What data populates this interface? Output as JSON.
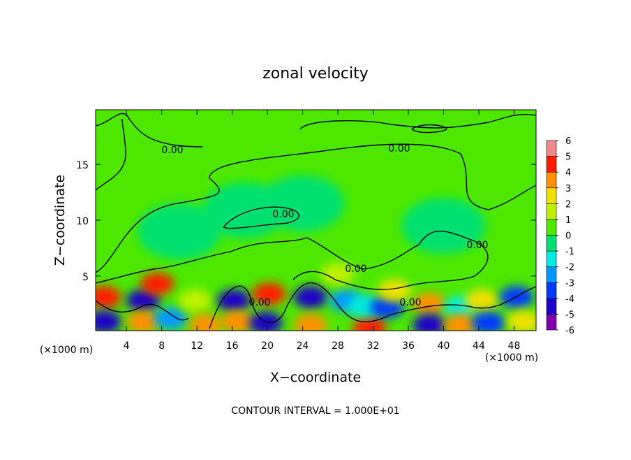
{
  "chart_data": {
    "type": "contour",
    "title": "zonal velocity",
    "x_label": "X−coordinate",
    "y_label": "Z−coordinate",
    "x_unit": "(×1000 m)",
    "y_unit": "(×1000 m)",
    "footer": "CONTOUR INTERVAL = 1.000E+01",
    "xlim": [
      0.5,
      50.5
    ],
    "ylim": [
      0.1,
      19.9
    ],
    "xticks": [
      4,
      8,
      12,
      16,
      20,
      24,
      28,
      32,
      36,
      40,
      44,
      48
    ],
    "yticks": [
      5,
      10,
      15
    ],
    "colorbar_ticks": [
      -6,
      -5,
      -4,
      -3,
      -2,
      -1,
      0,
      1,
      2,
      3,
      4,
      5,
      6
    ],
    "colorbar_colors": [
      "#8000b0",
      "#1a00c8",
      "#0038ff",
      "#0098ff",
      "#00ece0",
      "#00e070",
      "#4ce800",
      "#c0f000",
      "#f0e000",
      "#ff9000",
      "#ff1a00",
      "#f08a8a"
    ],
    "contour_labels": [
      "0.00",
      "0.00",
      "0.00",
      "0.00",
      "0.00",
      "0.00",
      "0.00"
    ],
    "blobs": [
      {
        "x": 1.5,
        "z": 3.1,
        "value": 4.5
      },
      {
        "x": 1.5,
        "z": 0.9,
        "value": -4.5
      },
      {
        "x": 5.9,
        "z": 2.8,
        "value": -4.5
      },
      {
        "x": 5.9,
        "z": 0.9,
        "value": 3.5
      },
      {
        "x": 7.5,
        "z": 4.3,
        "value": 4.5
      },
      {
        "x": 9,
        "z": 1.2,
        "value": -2.5
      },
      {
        "x": 11.8,
        "z": 2.8,
        "value": 1.5
      },
      {
        "x": 13,
        "z": 0.6,
        "value": 3.5
      },
      {
        "x": 16.2,
        "z": 2.8,
        "value": -4.5
      },
      {
        "x": 16.6,
        "z": 0.9,
        "value": 3.5
      },
      {
        "x": 20.2,
        "z": 3.4,
        "value": 4.5
      },
      {
        "x": 19.8,
        "z": 0.8,
        "value": -4.5
      },
      {
        "x": 24.9,
        "z": 3.1,
        "value": -4.5
      },
      {
        "x": 24.9,
        "z": 0.6,
        "value": 3.5
      },
      {
        "x": 28.9,
        "z": 2.8,
        "value": -2.5
      },
      {
        "x": 31.6,
        "z": 0.4,
        "value": 4.5
      },
      {
        "x": 31,
        "z": 2.3,
        "value": -1.5
      },
      {
        "x": 33.6,
        "z": 2.2,
        "value": -3.5
      },
      {
        "x": 34.4,
        "z": 3.7,
        "value": 2.5
      },
      {
        "x": 38.4,
        "z": 2.5,
        "value": 3.5
      },
      {
        "x": 38.4,
        "z": 0.6,
        "value": -4.5
      },
      {
        "x": 41.9,
        "z": 2.2,
        "value": -1.5
      },
      {
        "x": 41.9,
        "z": 0.6,
        "value": 3.5
      },
      {
        "x": 44.3,
        "z": 2.8,
        "value": 2.5
      },
      {
        "x": 45.1,
        "z": 0.8,
        "value": -3.5
      },
      {
        "x": 48.3,
        "z": 3.1,
        "value": -3.5
      },
      {
        "x": 49.1,
        "z": 0.9,
        "value": 2.5
      },
      {
        "x": 28,
        "z": 5.2,
        "value": 1.5
      },
      {
        "x": 17.4,
        "z": 10.9,
        "value": -0.5
      },
      {
        "x": 24,
        "z": 11.5,
        "value": -0.5
      },
      {
        "x": 10,
        "z": 9,
        "value": -0.5
      },
      {
        "x": 40,
        "z": 9.5,
        "value": -0.5
      }
    ]
  }
}
